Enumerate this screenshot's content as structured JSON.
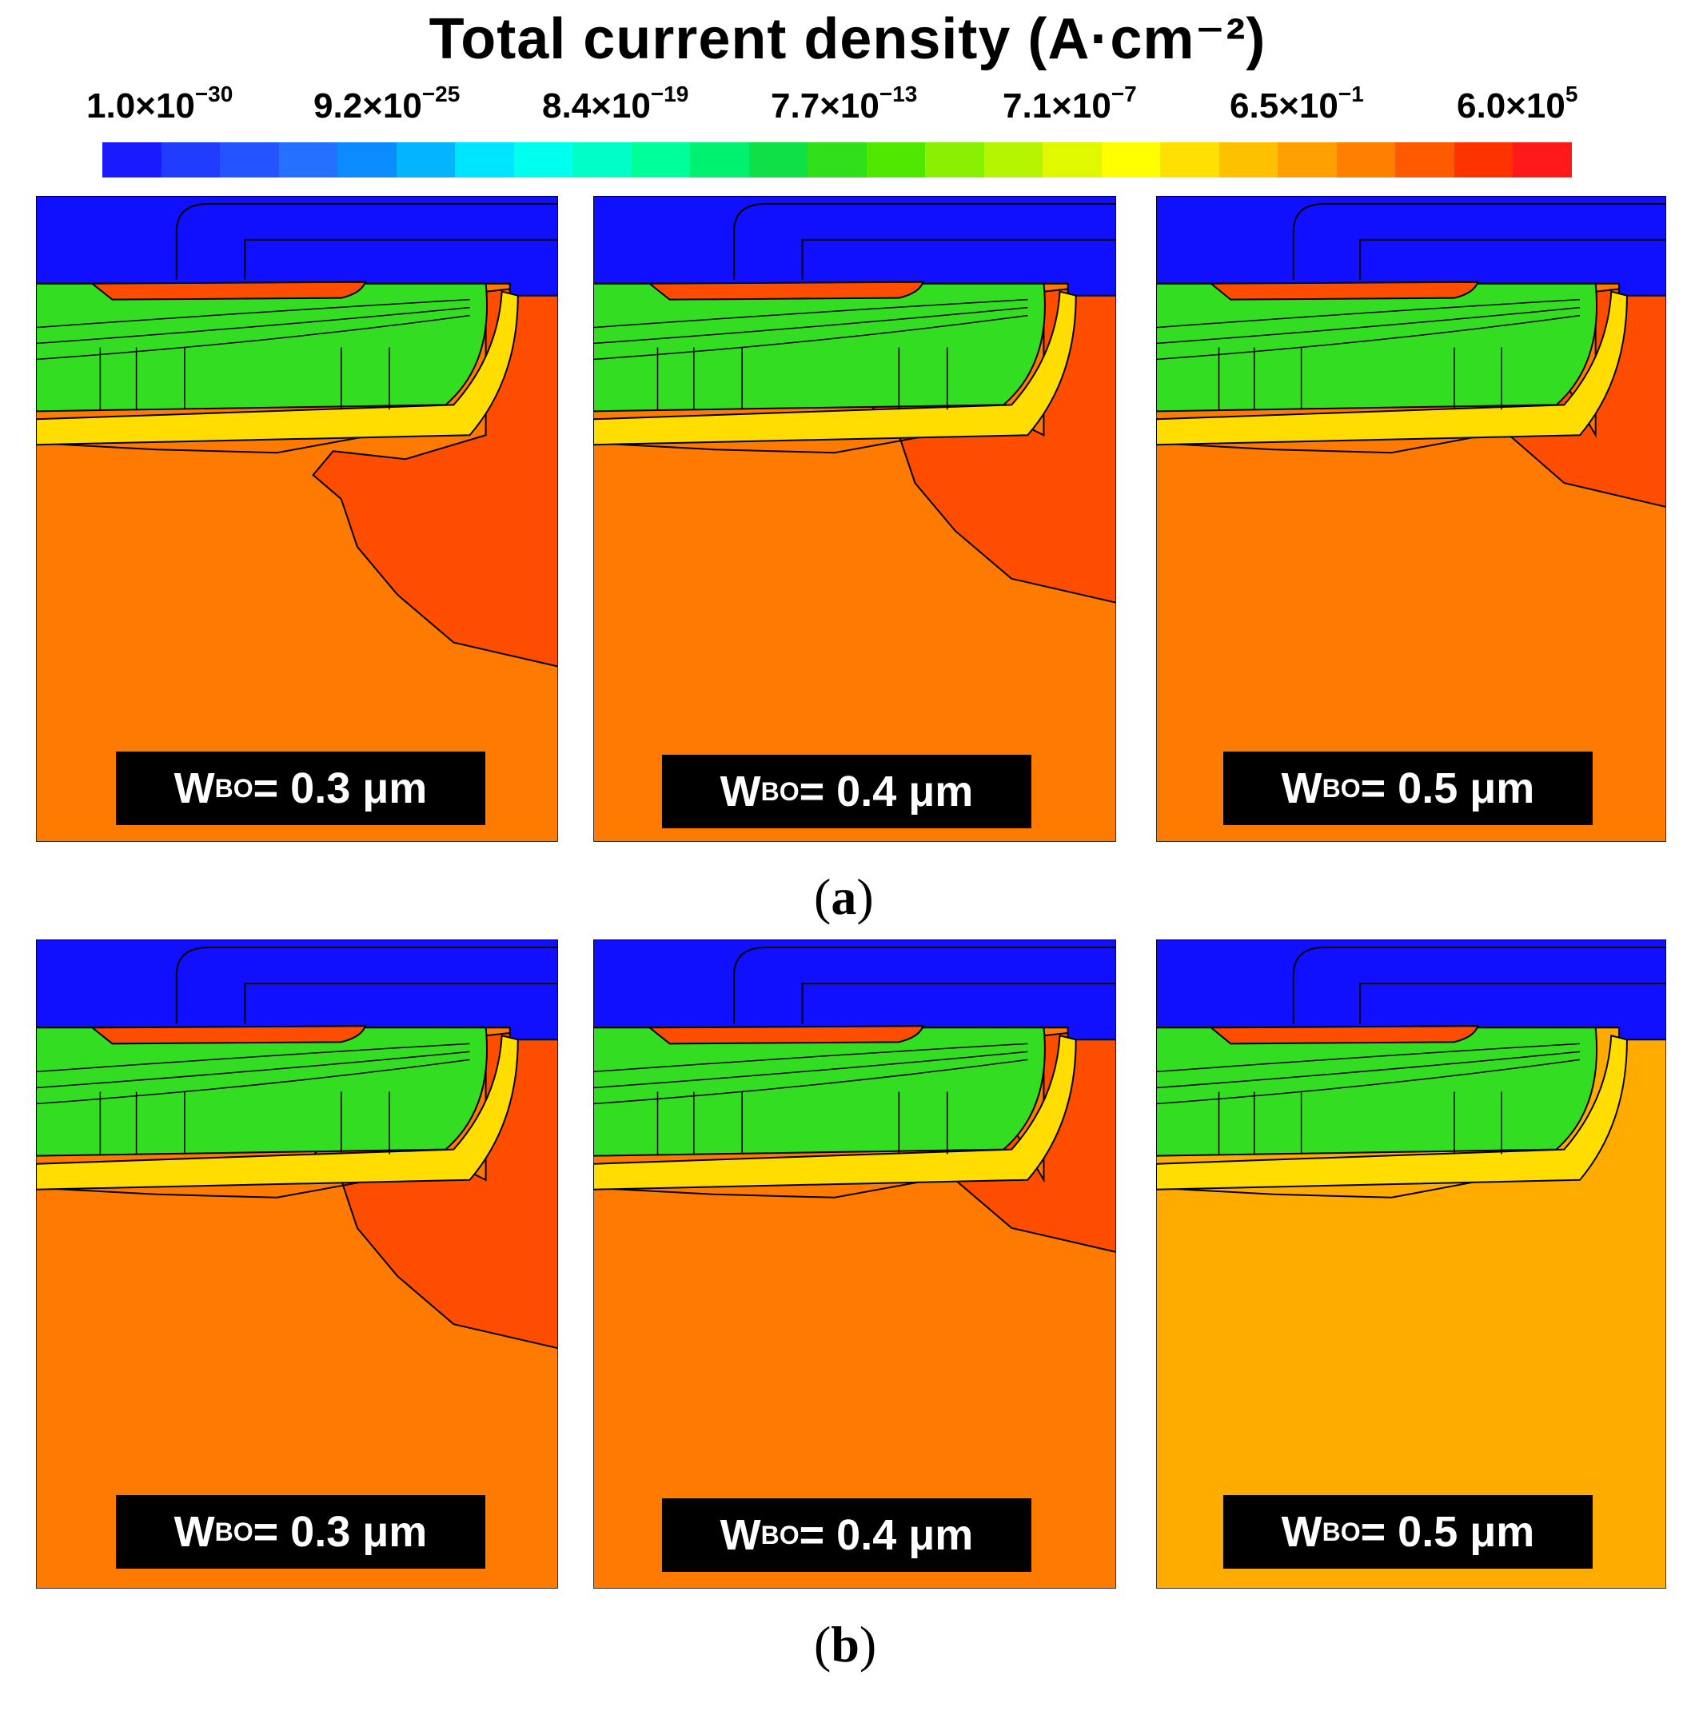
{
  "title": "Total current density (A·cm⁻²)",
  "colorbar": {
    "ticks": [
      {
        "mantissa": "1.0×10",
        "exponent": "−30"
      },
      {
        "mantissa": "9.2×10",
        "exponent": "−25"
      },
      {
        "mantissa": "8.4×10",
        "exponent": "−19"
      },
      {
        "mantissa": "7.7×10",
        "exponent": "−13"
      },
      {
        "mantissa": "7.1×10",
        "exponent": "−7"
      },
      {
        "mantissa": "6.5×10",
        "exponent": "−1"
      },
      {
        "mantissa": "6.0×10",
        "exponent": "5"
      }
    ],
    "colors": [
      "#1a1aff",
      "#1f3cff",
      "#2255ff",
      "#2570ff",
      "#0a8cff",
      "#05b4ff",
      "#00e5ff",
      "#00ffee",
      "#00ffc8",
      "#00ff99",
      "#00f070",
      "#10e048",
      "#30e01a",
      "#50e800",
      "#88f000",
      "#b5f500",
      "#e0f800",
      "#ffff00",
      "#ffe000",
      "#ffc000",
      "#ffa000",
      "#ff8000",
      "#ff5a00",
      "#ff3300",
      "#ff1a1a"
    ]
  },
  "panels": [
    {
      "row": "a",
      "wbo_var": "W",
      "wbo_sub": "BO",
      "wbo_value": "= 0.3 μm",
      "hot_zone": "large"
    },
    {
      "row": "a",
      "wbo_var": "W",
      "wbo_sub": "BO",
      "wbo_value": "= 0.4 μm",
      "hot_zone": "medium"
    },
    {
      "row": "a",
      "wbo_var": "W",
      "wbo_sub": "BO",
      "wbo_value": "= 0.5 μm",
      "hot_zone": "small"
    },
    {
      "row": "b",
      "wbo_var": "W",
      "wbo_sub": "BO",
      "wbo_value": "= 0.3 μm",
      "hot_zone": "medium"
    },
    {
      "row": "b",
      "wbo_var": "W",
      "wbo_sub": "BO",
      "wbo_value": "= 0.4 μm",
      "hot_zone": "small"
    },
    {
      "row": "b",
      "wbo_var": "W",
      "wbo_sub": "BO",
      "wbo_value": "= 0.5 μm",
      "hot_zone": "none"
    }
  ],
  "captions": {
    "a": "a",
    "b": "b"
  },
  "colors": {
    "oxide": "#1010ff",
    "bulk": "#ff7a00",
    "hot": "#ff4d00",
    "bulk_light": "#ffab00",
    "channel": "#33dd22"
  }
}
